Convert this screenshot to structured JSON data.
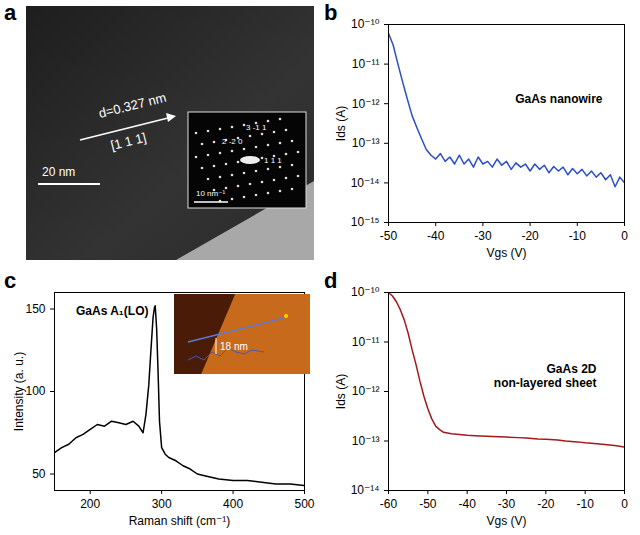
{
  "chart_data": [
    {
      "panel": "a",
      "type": "image",
      "annotations": [
        "d=0.327 nm",
        "[1 1 1]",
        "20 nm"
      ],
      "inset": {
        "type": "image",
        "annotations": [
          "3 -1 1",
          "2 -2 0",
          "1 1 1",
          "10 nm⁻¹"
        ]
      }
    },
    {
      "panel": "b",
      "type": "line",
      "annotations": [
        "GaAs nanowire"
      ],
      "x_label": "Vgs (V)",
      "y_label": "Ids (A)",
      "log": "y",
      "color": "#2b4fc7",
      "x": [
        -50,
        -49,
        -48,
        -47,
        -46,
        -45,
        -44,
        -43,
        -42,
        -41,
        -40,
        -39,
        -38,
        -37,
        -36,
        -35,
        -34,
        -33,
        -32,
        -31,
        -30,
        -29,
        -28,
        -27,
        -26,
        -25,
        -24,
        -23,
        -22,
        -21,
        -20,
        -19,
        -18,
        -17,
        -16,
        -15,
        -14,
        -13,
        -12,
        -11,
        -10,
        -9,
        -8,
        -7,
        -6,
        -5,
        -4,
        -3,
        -2,
        -1,
        0
      ],
      "values": [
        6e-11,
        3e-11,
        1e-11,
        3.5e-12,
        1.3e-12,
        5e-13,
        2.5e-13,
        1.3e-13,
        7e-14,
        5e-14,
        4e-14,
        5.5e-14,
        3.5e-14,
        4.5e-14,
        3e-14,
        5e-14,
        3e-14,
        4e-14,
        2.5e-14,
        4.5e-14,
        3e-14,
        3.5e-14,
        2.5e-14,
        4e-14,
        2.8e-14,
        3.5e-14,
        2.2e-14,
        3.2e-14,
        2.5e-14,
        3e-14,
        2e-14,
        3e-14,
        2.2e-14,
        2.8e-14,
        1.8e-14,
        2.6e-14,
        2e-14,
        2.5e-14,
        1.6e-14,
        2.3e-14,
        1.7e-14,
        2.2e-14,
        1.5e-14,
        2e-14,
        1.4e-14,
        1.8e-14,
        1.2e-14,
        1.6e-14,
        8e-15,
        1.4e-14,
        1e-14
      ],
      "xlim": [
        -50,
        0
      ],
      "xticks": [
        -50,
        -40,
        -30,
        -20,
        -10,
        0
      ],
      "ylim": [
        1e-15,
        1e-10
      ],
      "yticks": [
        {
          "value": 1e-15,
          "label": "10⁻¹⁵"
        },
        {
          "value": 1e-14,
          "label": "10⁻¹⁴"
        },
        {
          "value": 1e-13,
          "label": "10⁻¹³"
        },
        {
          "value": 1e-12,
          "label": "10⁻¹²"
        },
        {
          "value": 1e-11,
          "label": "10⁻¹¹"
        },
        {
          "value": 1e-10,
          "label": "10⁻¹⁰"
        }
      ]
    },
    {
      "panel": "c",
      "type": "line",
      "annotations": [
        "GaAs A₁(LO)"
      ],
      "x_label": "Raman shift (cm⁻¹)",
      "y_label": "Intensity (a. u.)",
      "color": "#000000",
      "x": [
        150,
        160,
        170,
        180,
        190,
        200,
        210,
        220,
        230,
        240,
        250,
        260,
        268,
        274,
        278,
        282,
        285,
        288,
        290,
        291,
        293,
        295,
        297,
        300,
        305,
        310,
        320,
        330,
        340,
        350,
        360,
        380,
        400,
        420,
        440,
        460,
        480,
        500
      ],
      "values": [
        63,
        66,
        68,
        72,
        74,
        77,
        80,
        79,
        82,
        81,
        80,
        82,
        79,
        75,
        86,
        104,
        125,
        145,
        151,
        152,
        138,
        112,
        82,
        66,
        62,
        60,
        58,
        55,
        53,
        50,
        49,
        47,
        46,
        46,
        45,
        44,
        44,
        43
      ],
      "xlim": [
        150,
        500
      ],
      "xticks": [
        200,
        300,
        400,
        500
      ],
      "ylim": [
        40,
        160
      ],
      "yticks": [
        50,
        100,
        150
      ],
      "inset": {
        "type": "image",
        "annotations": [
          "18 nm"
        ]
      }
    },
    {
      "panel": "d",
      "type": "line",
      "annotations": [
        "GaAs 2D",
        "non-layered sheet"
      ],
      "x_label": "Vgs (V)",
      "y_label": "Ids (A)",
      "log": "y",
      "color": "#a3191c",
      "x": [
        -60,
        -59,
        -58,
        -57,
        -56,
        -55,
        -54,
        -53,
        -52,
        -51,
        -50,
        -49,
        -48,
        -47,
        -46,
        -45,
        -44,
        -42,
        -40,
        -38,
        -35,
        -32,
        -30,
        -27,
        -25,
        -22,
        -20,
        -17,
        -15,
        -12,
        -10,
        -7,
        -5,
        -2,
        0
      ],
      "values": [
        1e-10,
        8.5e-11,
        6.5e-11,
        4.5e-11,
        2.8e-11,
        1.5e-11,
        7e-12,
        3.5e-12,
        1.6e-12,
        8e-13,
        4.5e-13,
        2.8e-13,
        2e-13,
        1.7e-13,
        1.5e-13,
        1.45e-13,
        1.4e-13,
        1.35e-13,
        1.3e-13,
        1.28e-13,
        1.25e-13,
        1.22e-13,
        1.2e-13,
        1.17e-13,
        1.15e-13,
        1.1e-13,
        1.08e-13,
        1.05e-13,
        1e-13,
        9.6e-14,
        9.2e-14,
        8.8e-14,
        8.5e-14,
        8e-14,
        7.5e-14
      ],
      "xlim": [
        -60,
        0
      ],
      "xticks": [
        -60,
        -50,
        -40,
        -30,
        -20,
        -10,
        0
      ],
      "ylim": [
        1e-14,
        1e-10
      ],
      "yticks": [
        {
          "value": 1e-14,
          "label": "10⁻¹⁴"
        },
        {
          "value": 1e-13,
          "label": "10⁻¹³"
        },
        {
          "value": 1e-12,
          "label": "10⁻¹²"
        },
        {
          "value": 1e-11,
          "label": "10⁻¹¹"
        },
        {
          "value": 1e-10,
          "label": "10⁻¹⁰"
        }
      ]
    }
  ]
}
